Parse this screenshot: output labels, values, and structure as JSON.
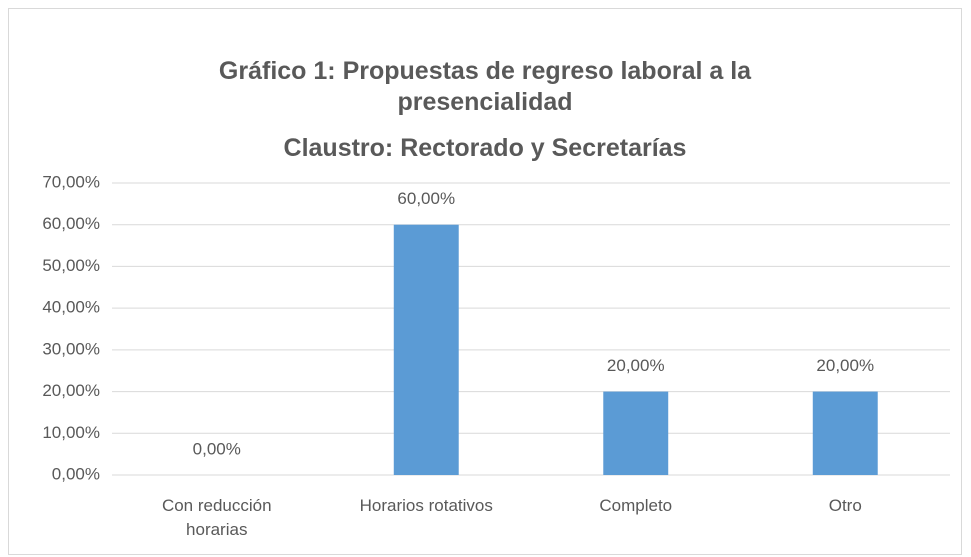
{
  "chart_data": {
    "type": "bar",
    "title": "Gráfico 1: Propuestas de regreso laboral a la presencialidad",
    "subtitle": "Claustro: Rectorado y Secretarías",
    "categories": [
      "Con reducción horarias",
      "Horarios rotativos",
      "Completo",
      "Otro"
    ],
    "values": [
      0,
      60,
      20,
      20
    ],
    "value_labels": [
      "0,00%",
      "60,00%",
      "20,00%",
      "20,00%"
    ],
    "color": "#5b9bd5",
    "ylim": [
      0,
      70
    ],
    "yticks": [
      {
        "value": 0,
        "label": "0,00%"
      },
      {
        "value": 10,
        "label": "10,00%"
      },
      {
        "value": 20,
        "label": "20,00%"
      },
      {
        "value": 30,
        "label": "30,00%"
      },
      {
        "value": 40,
        "label": "40,00%"
      },
      {
        "value": 50,
        "label": "50,00%"
      },
      {
        "value": 60,
        "label": "60,00%"
      },
      {
        "value": 70,
        "label": "70,00%"
      }
    ],
    "grid": true
  }
}
